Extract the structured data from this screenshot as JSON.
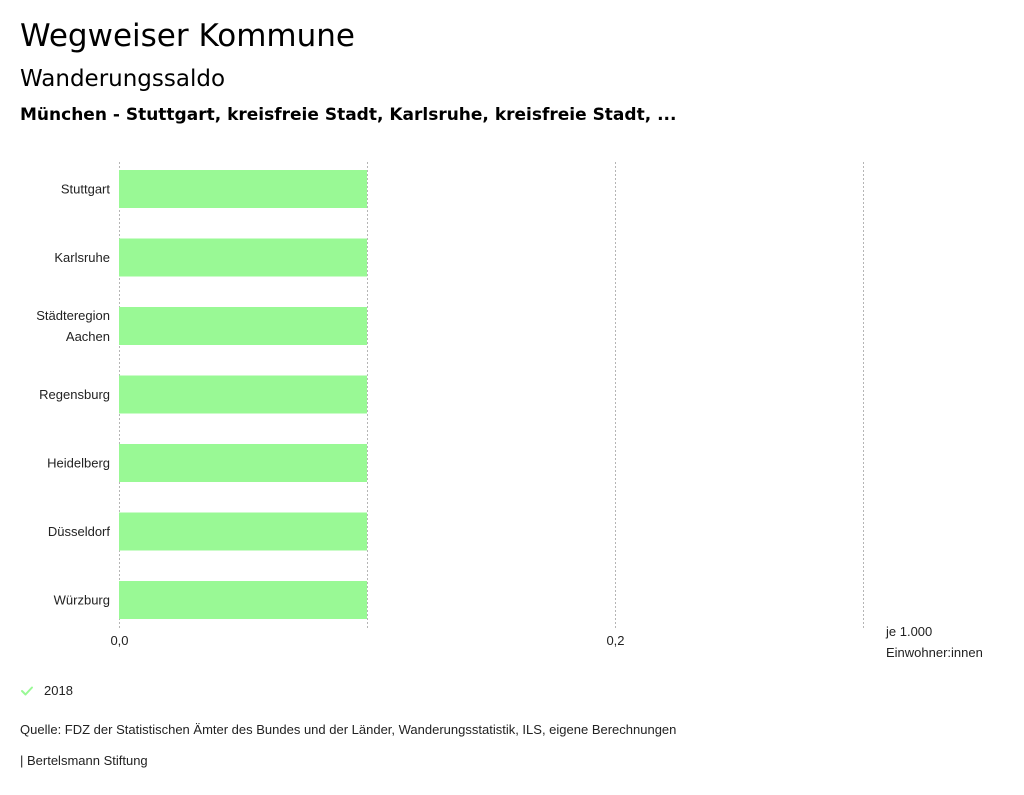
{
  "header": {
    "title": "Wegweiser Kommune",
    "subtitle": "Wanderungssaldo",
    "region": "München - Stuttgart, kreisfreie Stadt, Karlsruhe, kreisfreie Stadt, ..."
  },
  "chart_data": {
    "type": "bar",
    "orientation": "horizontal",
    "categories": [
      "Stuttgart",
      "Karlsruhe",
      "Städteregion Aachen",
      "Regensburg",
      "Heidelberg",
      "Düsseldorf",
      "Würzburg"
    ],
    "category_lines": [
      [
        "Stuttgart"
      ],
      [
        "Karlsruhe"
      ],
      [
        "Städteregion",
        "Aachen"
      ],
      [
        "Regensburg"
      ],
      [
        "Heidelberg"
      ],
      [
        "Düsseldorf"
      ],
      [
        "Würzburg"
      ]
    ],
    "series": [
      {
        "name": "2018",
        "values": [
          0.1,
          0.1,
          0.1,
          0.1,
          0.1,
          0.1,
          0.1
        ],
        "color": "#99f995"
      }
    ],
    "xlim": [
      0,
      0.3
    ],
    "gridlines": [
      0,
      0.1,
      0.2,
      0.3
    ],
    "xticks": [
      0,
      0.2
    ],
    "xtick_labels": [
      "0,0",
      "0,2"
    ],
    "unit_label_lines": [
      "je 1.000",
      "Einwohner:innen"
    ],
    "legend_position": "bottom-left"
  },
  "legend": {
    "label": "2018",
    "color": "#99f995"
  },
  "footer": {
    "source": "Quelle: FDZ der Statistischen Ämter des Bundes und der Länder, Wanderungsstatistik, ILS, eigene Berechnungen",
    "credit": "| Bertelsmann Stiftung"
  }
}
